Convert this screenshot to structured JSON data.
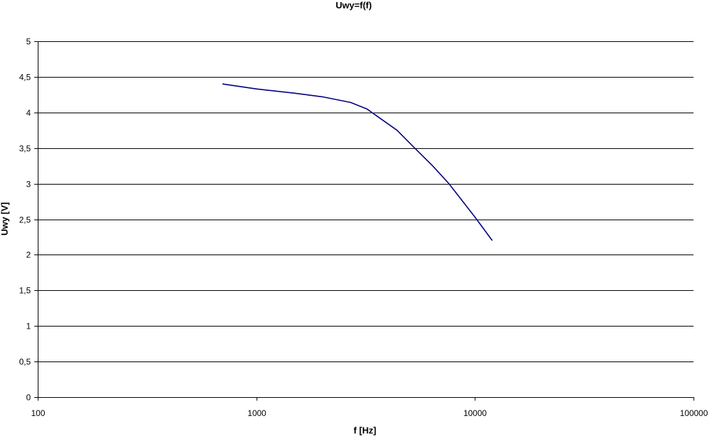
{
  "chart_data": {
    "type": "line",
    "title": "Uwy=f(f)",
    "xlabel": "f [Hz]",
    "ylabel": "Uwy [V]",
    "x_scale": "log",
    "xlim": [
      100,
      100000
    ],
    "ylim": [
      0,
      5
    ],
    "x_ticks": [
      "100",
      "1000",
      "10000",
      "100000"
    ],
    "y_ticks": [
      "0",
      "0,5",
      "1",
      "1,5",
      "2",
      "2,5",
      "3",
      "3,5",
      "4",
      "4,5",
      "5"
    ],
    "grid": "horizontal",
    "colors": {
      "line": "#000080",
      "grid": "#000000"
    },
    "series": [
      {
        "x": [
          700,
          1000,
          1500,
          2000,
          2700,
          3200,
          4400,
          5300,
          6400,
          7600,
          10000,
          12000
        ],
        "y": [
          4.4,
          4.33,
          4.27,
          4.22,
          4.14,
          4.05,
          3.75,
          3.5,
          3.25,
          3.0,
          2.53,
          2.2
        ]
      }
    ]
  }
}
